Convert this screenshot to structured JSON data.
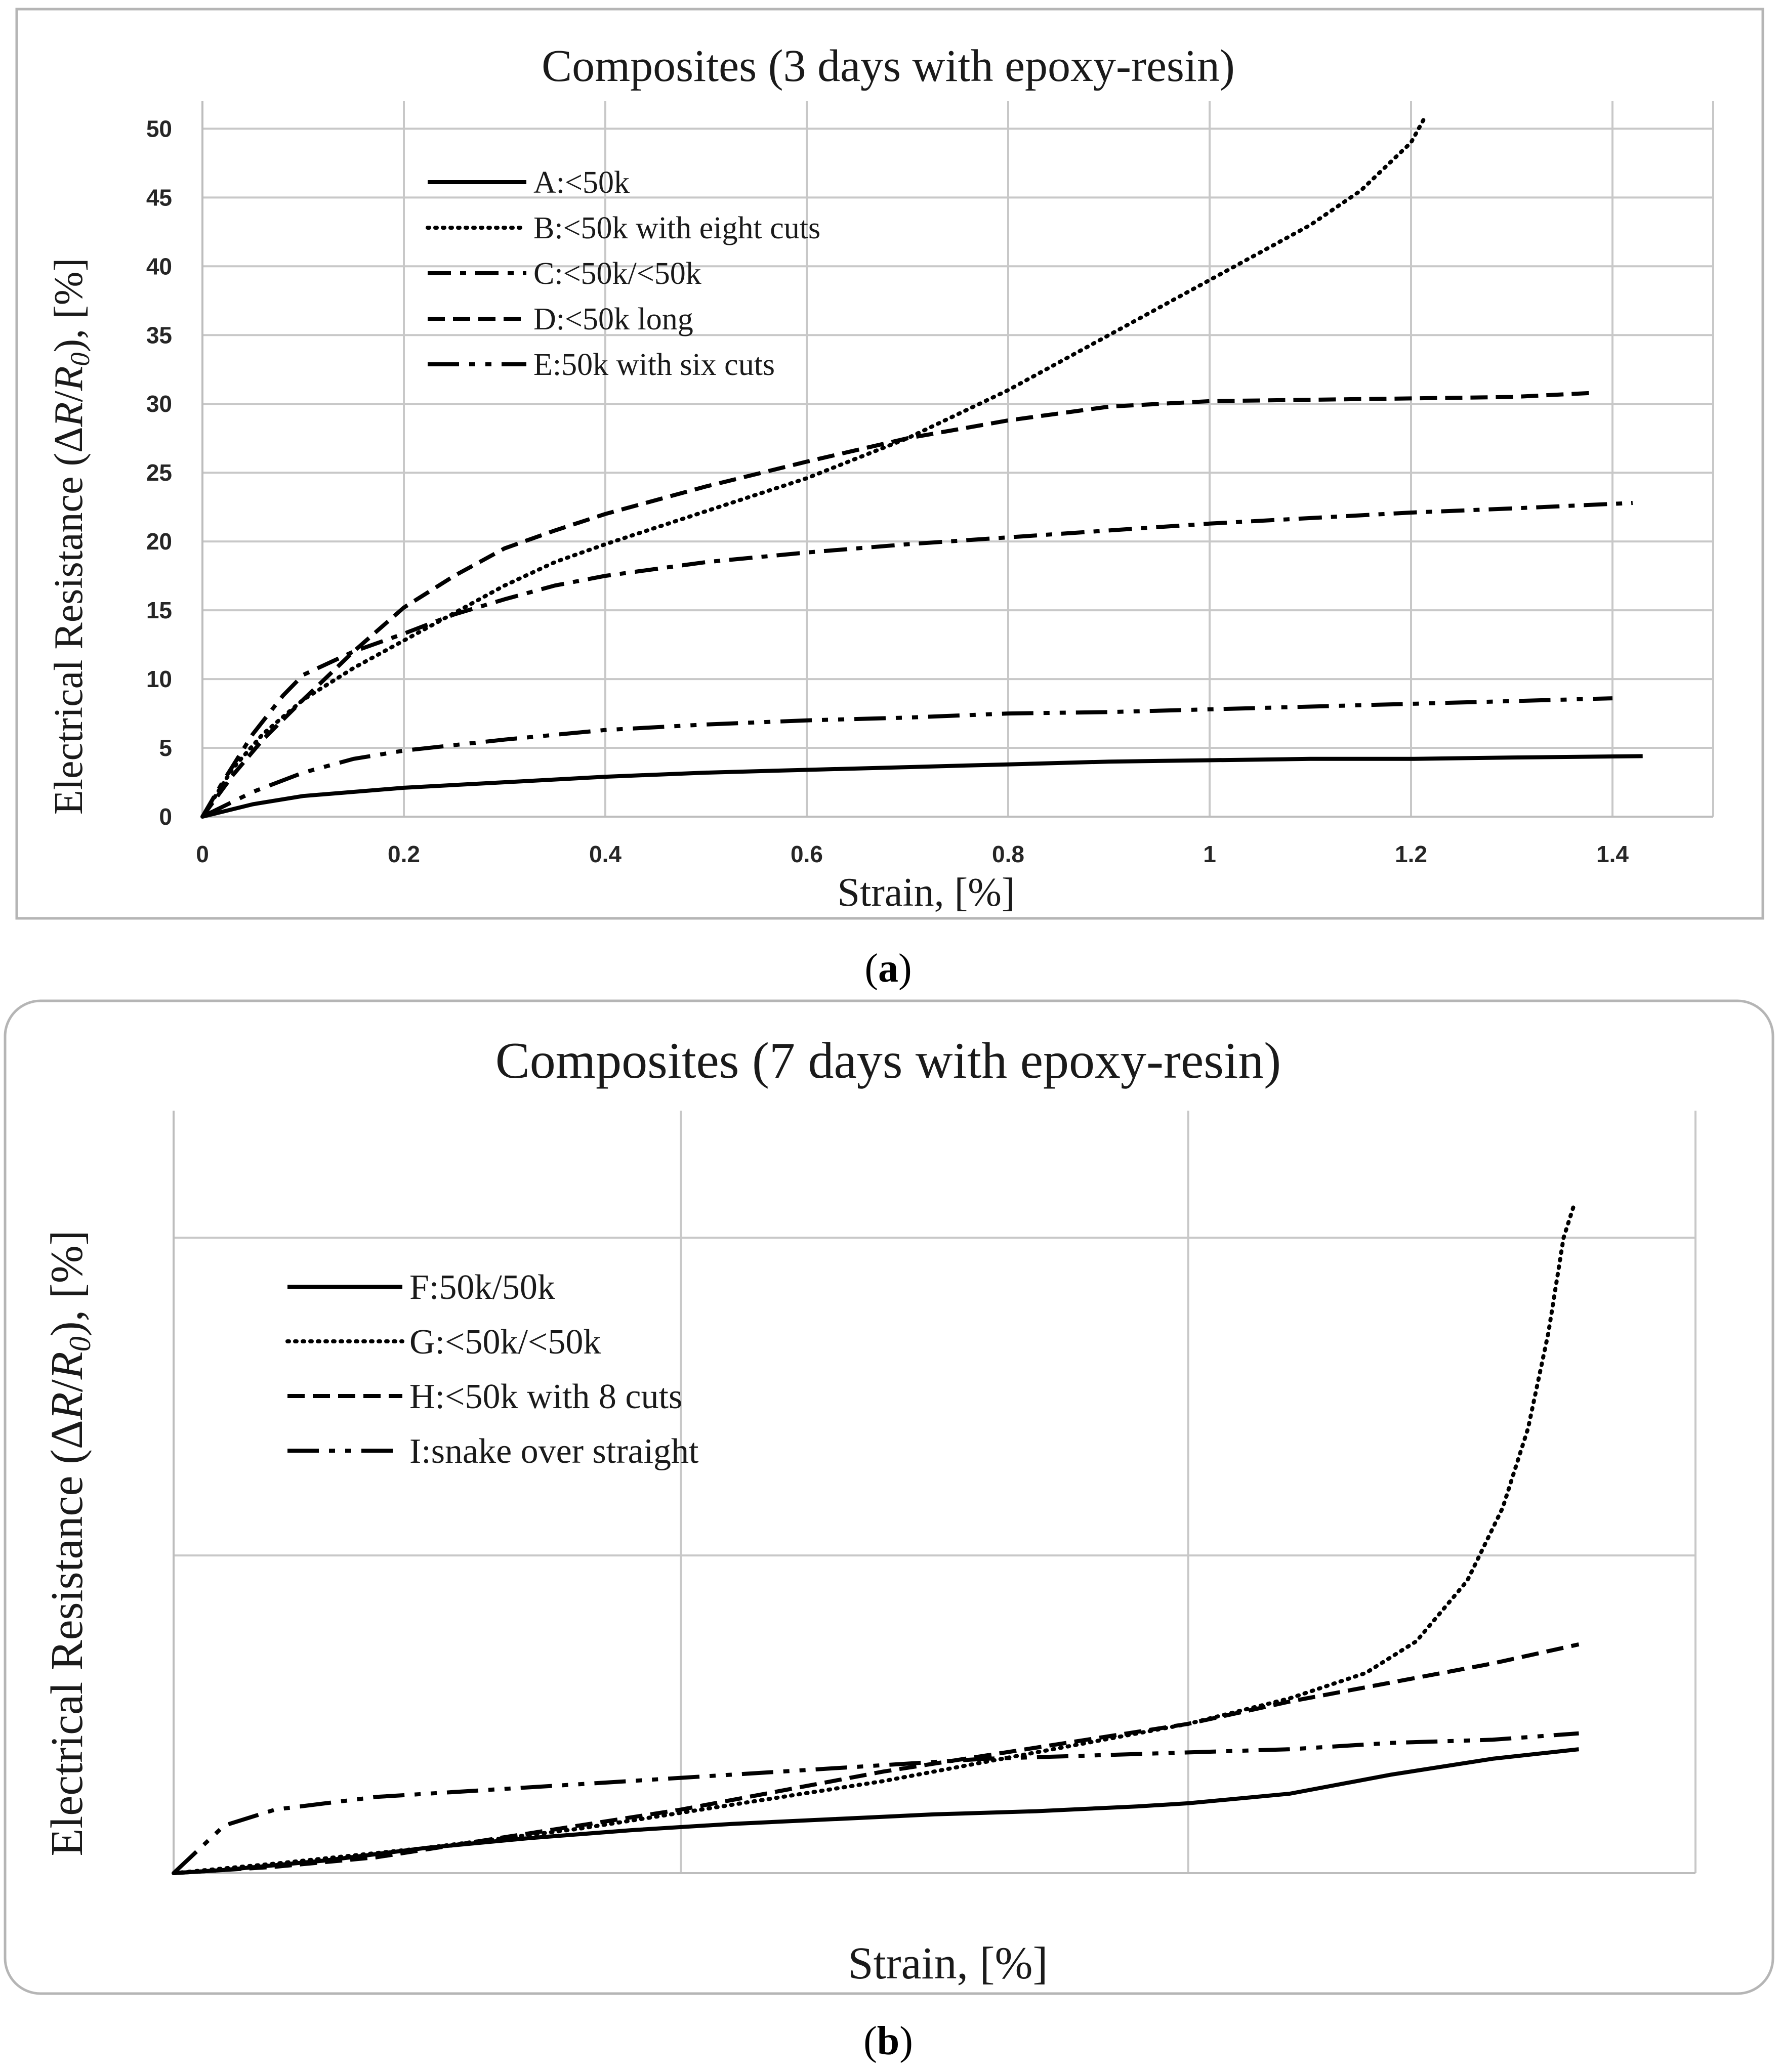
{
  "chart_data": [
    {
      "type": "line",
      "title": "Composites (3 days with epoxy-resin)",
      "xlabel": "Strain, [%]",
      "ylabel": "Electrical Resistance (ΔR/R₀), [%]",
      "ylabel_parts": {
        "prefix": "Electrical Resistance (Δ",
        "R": "R",
        "slash": "/",
        "R0": "R",
        "sub": "0",
        "suffix": "), [%]"
      },
      "panel_label": "a",
      "xlim": [
        0,
        1.5
      ],
      "ylim": [
        0,
        52
      ],
      "x_ticks": [
        0,
        0.2,
        0.4,
        0.6,
        0.8,
        1,
        1.2,
        1.4
      ],
      "x_tick_labels": [
        "0",
        "0.2",
        "0.4",
        "0.6",
        "0.8",
        "1",
        "1.2",
        "1.4"
      ],
      "y_ticks": [
        0,
        5,
        10,
        15,
        20,
        25,
        30,
        35,
        40,
        45,
        50
      ],
      "y_tick_labels": [
        "0",
        "5",
        "10",
        "15",
        "20",
        "25",
        "30",
        "35",
        "40",
        "45",
        "50"
      ],
      "grid": true,
      "legend_position": "upper-left",
      "series": [
        {
          "name": "A:<50k",
          "style": "solid",
          "points": [
            [
              0,
              0
            ],
            [
              0.05,
              0.9
            ],
            [
              0.1,
              1.5
            ],
            [
              0.2,
              2.1
            ],
            [
              0.3,
              2.5
            ],
            [
              0.4,
              2.9
            ],
            [
              0.5,
              3.2
            ],
            [
              0.6,
              3.4
            ],
            [
              0.7,
              3.6
            ],
            [
              0.8,
              3.8
            ],
            [
              0.9,
              4.0
            ],
            [
              1.0,
              4.1
            ],
            [
              1.1,
              4.2
            ],
            [
              1.2,
              4.2
            ],
            [
              1.3,
              4.3
            ],
            [
              1.43,
              4.4
            ]
          ]
        },
        {
          "name": "B:<50k with eight cuts",
          "style": "dotted",
          "points": [
            [
              0,
              0
            ],
            [
              0.03,
              3.5
            ],
            [
              0.06,
              6.0
            ],
            [
              0.1,
              8.5
            ],
            [
              0.15,
              10.8
            ],
            [
              0.2,
              12.8
            ],
            [
              0.25,
              14.8
            ],
            [
              0.3,
              16.8
            ],
            [
              0.35,
              18.5
            ],
            [
              0.4,
              19.8
            ],
            [
              0.5,
              22.2
            ],
            [
              0.6,
              24.6
            ],
            [
              0.7,
              27.5
            ],
            [
              0.8,
              31.0
            ],
            [
              0.9,
              35.0
            ],
            [
              1.0,
              39.0
            ],
            [
              1.1,
              43.0
            ],
            [
              1.15,
              45.5
            ],
            [
              1.2,
              49.0
            ],
            [
              1.215,
              51.0
            ]
          ]
        },
        {
          "name": "C:<50k/<50k",
          "style": "dashdot",
          "points": [
            [
              0,
              0
            ],
            [
              0.02,
              2.5
            ],
            [
              0.05,
              6.0
            ],
            [
              0.08,
              8.8
            ],
            [
              0.1,
              10.3
            ],
            [
              0.15,
              12.0
            ],
            [
              0.2,
              13.3
            ],
            [
              0.25,
              14.7
            ],
            [
              0.3,
              15.8
            ],
            [
              0.35,
              16.8
            ],
            [
              0.4,
              17.5
            ],
            [
              0.5,
              18.5
            ],
            [
              0.6,
              19.2
            ],
            [
              0.7,
              19.8
            ],
            [
              0.8,
              20.3
            ],
            [
              0.9,
              20.8
            ],
            [
              1.0,
              21.3
            ],
            [
              1.1,
              21.7
            ],
            [
              1.2,
              22.1
            ],
            [
              1.3,
              22.4
            ],
            [
              1.42,
              22.8
            ]
          ]
        },
        {
          "name": "D:<50k long",
          "style": "dashed",
          "points": [
            [
              0,
              0
            ],
            [
              0.03,
              3.0
            ],
            [
              0.06,
              5.6
            ],
            [
              0.1,
              8.5
            ],
            [
              0.15,
              12.0
            ],
            [
              0.2,
              15.2
            ],
            [
              0.25,
              17.5
            ],
            [
              0.3,
              19.5
            ],
            [
              0.35,
              20.8
            ],
            [
              0.4,
              22.0
            ],
            [
              0.5,
              24.0
            ],
            [
              0.6,
              25.8
            ],
            [
              0.7,
              27.5
            ],
            [
              0.8,
              28.8
            ],
            [
              0.9,
              29.8
            ],
            [
              1.0,
              30.2
            ],
            [
              1.1,
              30.3
            ],
            [
              1.2,
              30.4
            ],
            [
              1.3,
              30.5
            ],
            [
              1.38,
              30.8
            ]
          ]
        },
        {
          "name": "E:50k with six cuts",
          "style": "dashdotdot",
          "points": [
            [
              0,
              0
            ],
            [
              0.05,
              1.8
            ],
            [
              0.1,
              3.2
            ],
            [
              0.15,
              4.2
            ],
            [
              0.2,
              4.8
            ],
            [
              0.3,
              5.6
            ],
            [
              0.4,
              6.3
            ],
            [
              0.5,
              6.7
            ],
            [
              0.6,
              7.0
            ],
            [
              0.7,
              7.2
            ],
            [
              0.8,
              7.5
            ],
            [
              0.9,
              7.6
            ],
            [
              1.0,
              7.8
            ],
            [
              1.1,
              8.0
            ],
            [
              1.2,
              8.2
            ],
            [
              1.3,
              8.4
            ],
            [
              1.4,
              8.6
            ]
          ]
        }
      ]
    },
    {
      "type": "line",
      "title": "Composites (7 days with epoxy-resin)",
      "xlabel": "Strain, [%]",
      "ylabel": "Electrical Resistance (ΔR/R₀), [%]",
      "ylabel_parts": {
        "prefix": "Electrical Resistance (Δ",
        "R": "R",
        "slash": "/",
        "R0": "R",
        "sub": "0",
        "suffix": "), [%]"
      },
      "panel_label": "b",
      "axis_ticks_labeled": false,
      "xlim": [
        0,
        3
      ],
      "ylim": [
        0,
        2.4
      ],
      "x_gridlines": [
        1,
        2,
        3
      ],
      "y_gridlines": [
        1,
        2
      ],
      "grid": true,
      "legend_position": "upper-left",
      "series": [
        {
          "name": "F:50k/50k",
          "style": "solid",
          "points": [
            [
              0,
              0
            ],
            [
              0.1,
              0.01
            ],
            [
              0.3,
              0.04
            ],
            [
              0.5,
              0.08
            ],
            [
              0.7,
              0.11
            ],
            [
              0.9,
              0.135
            ],
            [
              1.1,
              0.155
            ],
            [
              1.3,
              0.17
            ],
            [
              1.5,
              0.185
            ],
            [
              1.7,
              0.195
            ],
            [
              1.9,
              0.21
            ],
            [
              2.0,
              0.22
            ],
            [
              2.2,
              0.25
            ],
            [
              2.4,
              0.31
            ],
            [
              2.6,
              0.36
            ],
            [
              2.77,
              0.39
            ]
          ]
        },
        {
          "name": "G:<50k/<50k",
          "style": "dotted",
          "points": [
            [
              0,
              0
            ],
            [
              0.2,
              0.03
            ],
            [
              0.5,
              0.08
            ],
            [
              0.8,
              0.14
            ],
            [
              1.0,
              0.19
            ],
            [
              1.2,
              0.24
            ],
            [
              1.4,
              0.29
            ],
            [
              1.6,
              0.35
            ],
            [
              1.8,
              0.41
            ],
            [
              2.0,
              0.47
            ],
            [
              2.2,
              0.55
            ],
            [
              2.35,
              0.63
            ],
            [
              2.45,
              0.73
            ],
            [
              2.55,
              0.92
            ],
            [
              2.62,
              1.15
            ],
            [
              2.67,
              1.4
            ],
            [
              2.71,
              1.7
            ],
            [
              2.74,
              2.0
            ],
            [
              2.76,
              2.1
            ]
          ]
        },
        {
          "name": "H:<50k with 8 cuts",
          "style": "dashed",
          "points": [
            [
              0,
              0
            ],
            [
              0.2,
              0.02
            ],
            [
              0.4,
              0.05
            ],
            [
              0.6,
              0.1
            ],
            [
              0.8,
              0.15
            ],
            [
              1.0,
              0.2
            ],
            [
              1.2,
              0.26
            ],
            [
              1.4,
              0.32
            ],
            [
              1.6,
              0.37
            ],
            [
              1.8,
              0.42
            ],
            [
              2.0,
              0.47
            ],
            [
              2.2,
              0.54
            ],
            [
              2.4,
              0.6
            ],
            [
              2.6,
              0.66
            ],
            [
              2.77,
              0.72
            ]
          ]
        },
        {
          "name": "I:snake over straight",
          "style": "dashdotdot",
          "points": [
            [
              0,
              0
            ],
            [
              0.1,
              0.15
            ],
            [
              0.2,
              0.2
            ],
            [
              0.4,
              0.24
            ],
            [
              0.6,
              0.26
            ],
            [
              0.8,
              0.28
            ],
            [
              1.0,
              0.3
            ],
            [
              1.2,
              0.32
            ],
            [
              1.4,
              0.34
            ],
            [
              1.6,
              0.36
            ],
            [
              1.8,
              0.37
            ],
            [
              2.0,
              0.38
            ],
            [
              2.2,
              0.39
            ],
            [
              2.4,
              0.41
            ],
            [
              2.6,
              0.42
            ],
            [
              2.77,
              0.44
            ]
          ]
        }
      ]
    }
  ]
}
